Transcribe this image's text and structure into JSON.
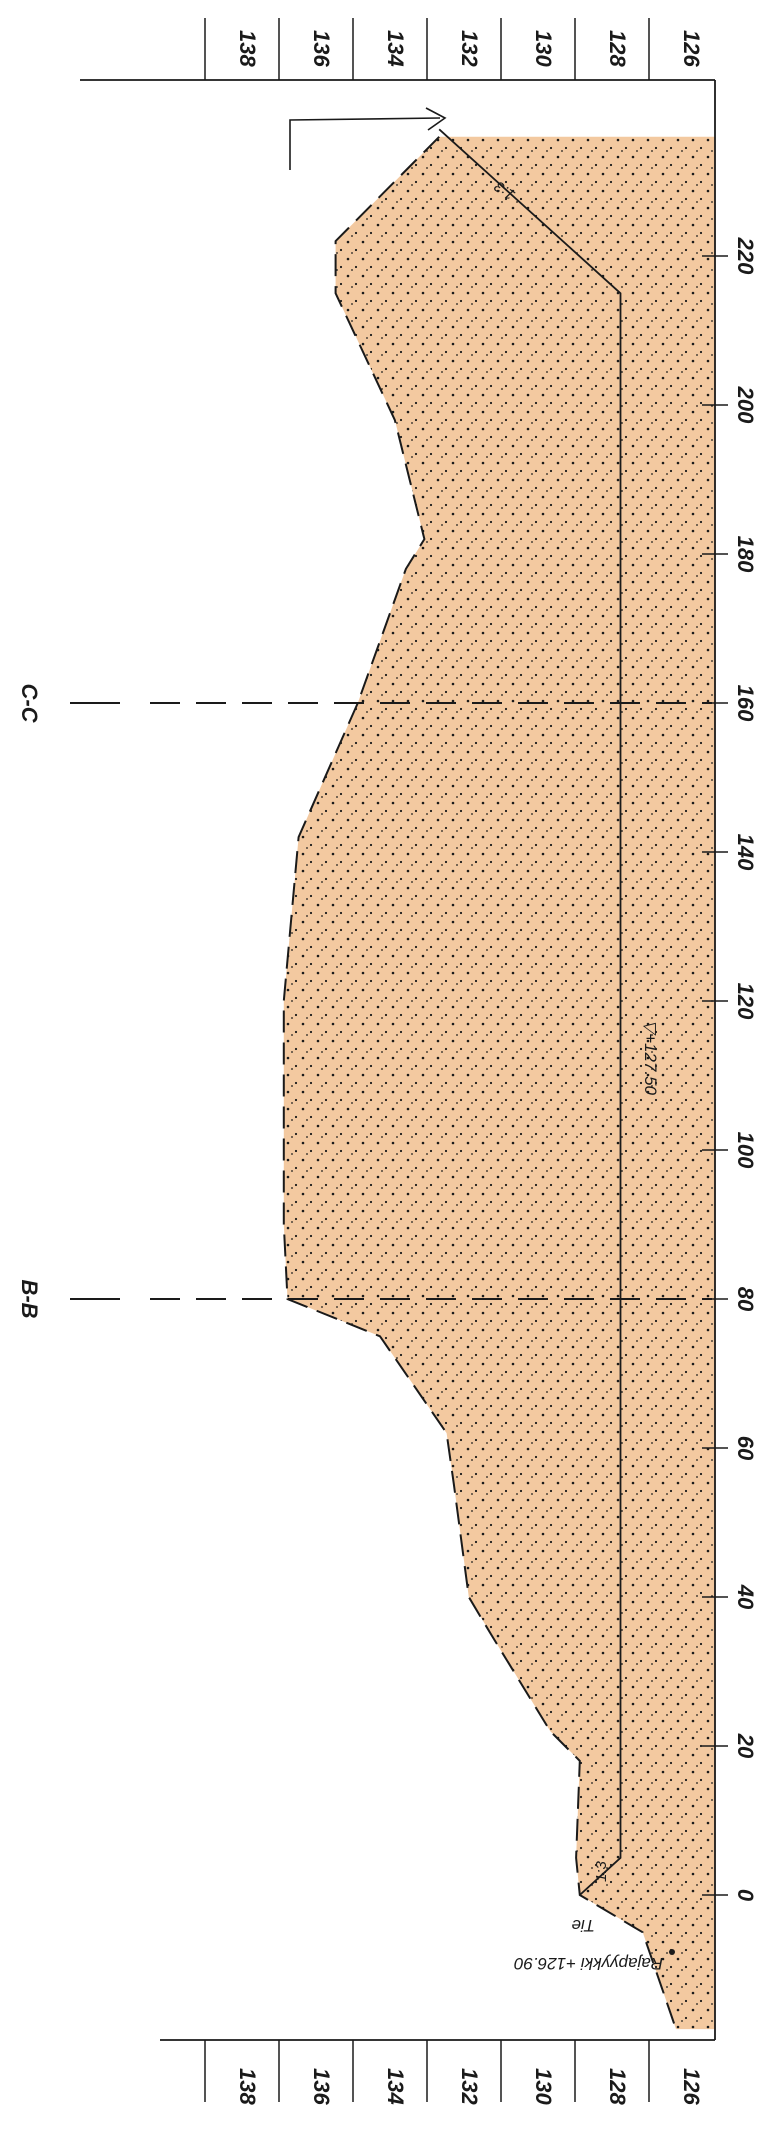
{
  "diagram": {
    "elevation_ticks": [
      "138",
      "136",
      "134",
      "132",
      "130",
      "128",
      "126"
    ],
    "elevation_ticks_bottom": [
      "138",
      "136",
      "134",
      "132",
      "130",
      "128",
      "126"
    ],
    "station_ticks": [
      "220",
      "200",
      "180",
      "160",
      "140",
      "120",
      "100",
      "80",
      "60",
      "40",
      "20",
      "0"
    ],
    "section_markers": [
      {
        "label": "C-C",
        "station": 160
      },
      {
        "label": "B-B",
        "station": 80
      }
    ],
    "water_level": "▽+127.50",
    "slope_top": "1:3",
    "slope_bottom": "1:3",
    "road_label": "Tie",
    "boundary_label": "Rajapyykki +126.90",
    "colors": {
      "fill": "#f3c9a0",
      "line": "#1a1a1a",
      "paper": "#ffffff"
    }
  }
}
